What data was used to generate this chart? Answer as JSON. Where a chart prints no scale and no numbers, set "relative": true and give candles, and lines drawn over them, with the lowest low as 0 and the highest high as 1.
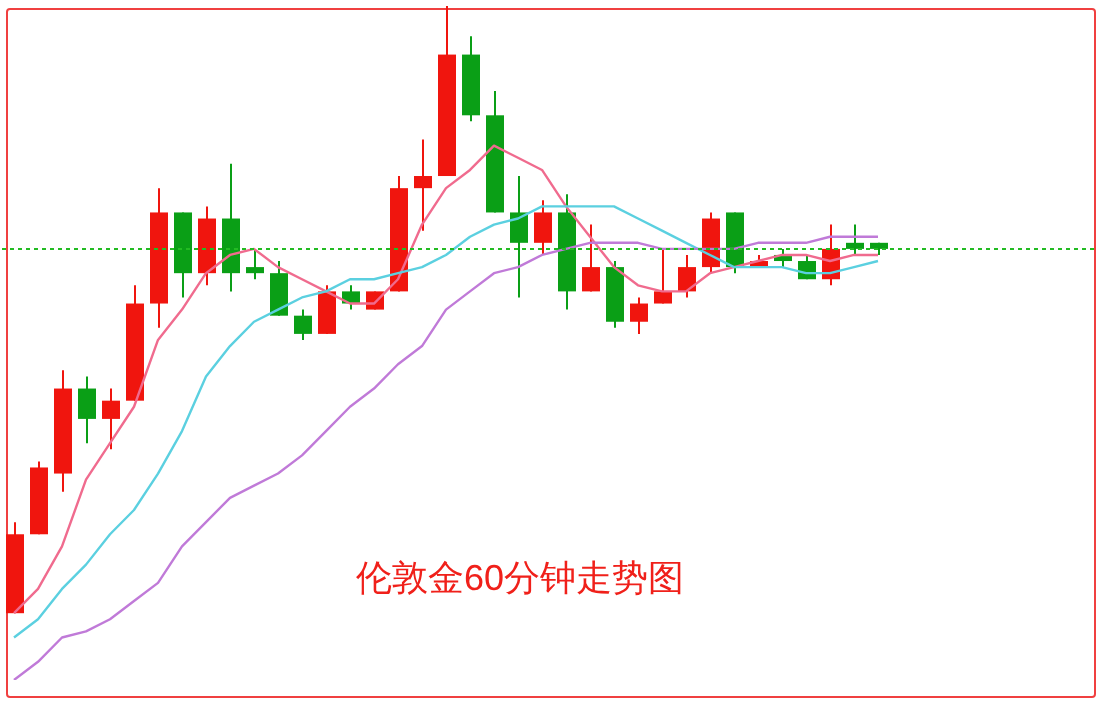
{
  "chart_data": {
    "type": "candlestick",
    "title": "伦敦金60分钟走势图",
    "relative": true,
    "marker": "none",
    "categories": [
      null,
      null,
      null,
      null,
      null,
      null,
      null,
      null,
      null,
      null,
      null,
      null,
      null,
      null,
      null,
      null,
      null,
      null,
      null,
      null,
      null,
      null,
      null,
      null,
      null,
      null,
      null,
      null,
      null,
      null,
      null,
      null,
      null,
      null,
      null,
      null,
      null
    ],
    "ohlc": [
      [
        0.0,
        0.15,
        0.0,
        0.13
      ],
      [
        0.13,
        0.25,
        0.13,
        0.24
      ],
      [
        0.23,
        0.4,
        0.2,
        0.37
      ],
      [
        0.37,
        0.39,
        0.28,
        0.32
      ],
      [
        0.32,
        0.37,
        0.27,
        0.35
      ],
      [
        0.35,
        0.54,
        0.35,
        0.51
      ],
      [
        0.51,
        0.7,
        0.47,
        0.66
      ],
      [
        0.66,
        0.66,
        0.52,
        0.56
      ],
      [
        0.56,
        0.67,
        0.54,
        0.65
      ],
      [
        0.65,
        0.74,
        0.53,
        0.56
      ],
      [
        0.57,
        0.6,
        0.55,
        0.56
      ],
      [
        0.56,
        0.58,
        0.49,
        0.49
      ],
      [
        0.49,
        0.5,
        0.45,
        0.46
      ],
      [
        0.46,
        0.54,
        0.46,
        0.53
      ],
      [
        0.53,
        0.54,
        0.5,
        0.51
      ],
      [
        0.5,
        0.53,
        0.5,
        0.53
      ],
      [
        0.53,
        0.72,
        0.53,
        0.7
      ],
      [
        0.7,
        0.78,
        0.63,
        0.72
      ],
      [
        0.72,
        1.0,
        0.72,
        0.92
      ],
      [
        0.92,
        0.95,
        0.81,
        0.82
      ],
      [
        0.82,
        0.86,
        0.66,
        0.66
      ],
      [
        0.66,
        0.72,
        0.52,
        0.61
      ],
      [
        0.61,
        0.68,
        0.59,
        0.66
      ],
      [
        0.66,
        0.69,
        0.5,
        0.53
      ],
      [
        0.53,
        0.64,
        0.53,
        0.57
      ],
      [
        0.57,
        0.58,
        0.47,
        0.48
      ],
      [
        0.48,
        0.52,
        0.46,
        0.51
      ],
      [
        0.51,
        0.6,
        0.51,
        0.53
      ],
      [
        0.53,
        0.59,
        0.52,
        0.57
      ],
      [
        0.57,
        0.66,
        0.56,
        0.65
      ],
      [
        0.66,
        0.66,
        0.56,
        0.57
      ],
      [
        0.57,
        0.59,
        0.57,
        0.58
      ],
      [
        0.59,
        0.6,
        0.57,
        0.58
      ],
      [
        0.58,
        0.59,
        0.55,
        0.55
      ],
      [
        0.55,
        0.64,
        0.54,
        0.6
      ],
      [
        0.61,
        0.64,
        0.59,
        0.6
      ],
      [
        0.61,
        0.61,
        0.59,
        0.6
      ]
    ],
    "colors": [
      "#f0150e",
      "#f0150e",
      "#f0150e",
      "#0a9f16",
      "#f0150e",
      "#f0150e",
      "#f0150e",
      "#0a9f16",
      "#f0150e",
      "#0a9f16",
      "#0a9f16",
      "#0a9f16",
      "#0a9f16",
      "#f0150e",
      "#0a9f16",
      "#f0150e",
      "#f0150e",
      "#f0150e",
      "#f0150e",
      "#0a9f16",
      "#0a9f16",
      "#0a9f16",
      "#f0150e",
      "#0a9f16",
      "#f0150e",
      "#0a9f16",
      "#f0150e",
      "#f0150e",
      "#f0150e",
      "#f0150e",
      "#0a9f16",
      "#f0150e",
      "#0a9f16",
      "#0a9f16",
      "#f0150e",
      "#0a9f16",
      "#0a9f16"
    ],
    "series": [
      {
        "type": "line",
        "color": "#f06b8e",
        "values": [
          0.0,
          0.04,
          0.11,
          0.22,
          0.28,
          0.34,
          0.45,
          0.5,
          0.56,
          0.59,
          0.6,
          0.57,
          0.55,
          0.53,
          0.51,
          0.51,
          0.55,
          0.64,
          0.7,
          0.73,
          0.77,
          0.75,
          0.73,
          0.67,
          0.62,
          0.57,
          0.54,
          0.53,
          0.53,
          0.56,
          0.57,
          0.58,
          0.59,
          0.59,
          0.58,
          0.59,
          0.59
        ]
      },
      {
        "type": "line",
        "color": "#5bd0e0",
        "values": [
          -0.04,
          -0.01,
          0.04,
          0.08,
          0.13,
          0.17,
          0.23,
          0.3,
          0.39,
          0.44,
          0.48,
          0.5,
          0.52,
          0.53,
          0.55,
          0.55,
          0.56,
          0.57,
          0.59,
          0.62,
          0.64,
          0.65,
          0.67,
          0.67,
          0.67,
          0.67,
          0.65,
          0.63,
          0.61,
          0.59,
          0.57,
          0.57,
          0.57,
          0.56,
          0.56,
          0.57,
          0.58
        ]
      },
      {
        "type": "line",
        "color": "#c07ad8",
        "values": [
          -0.11,
          -0.08,
          -0.04,
          -0.03,
          -0.01,
          0.02,
          0.05,
          0.11,
          0.15,
          0.19,
          0.21,
          0.23,
          0.26,
          0.3,
          0.34,
          0.37,
          0.41,
          0.44,
          0.5,
          0.53,
          0.56,
          0.57,
          0.59,
          0.6,
          0.61,
          0.61,
          0.61,
          0.6,
          0.6,
          0.6,
          0.6,
          0.61,
          0.61,
          0.61,
          0.62,
          0.62,
          0.62
        ]
      }
    ],
    "ref_lines": [
      {
        "axis": "y",
        "value": 0.6,
        "color": "#22bb22",
        "line_style": "dotted"
      }
    ]
  }
}
